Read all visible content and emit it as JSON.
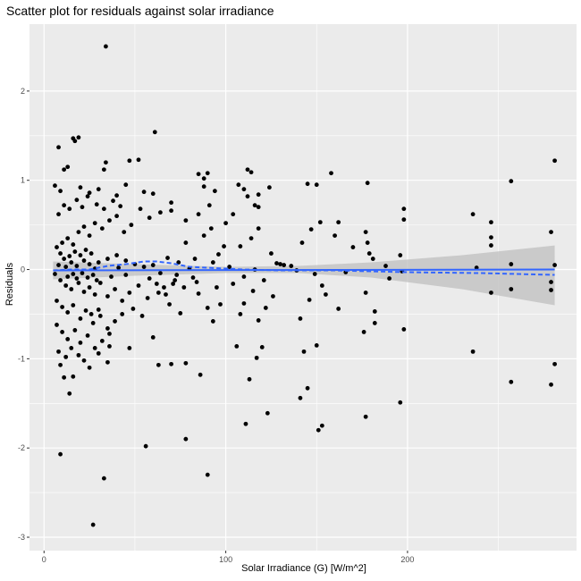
{
  "chart_data": {
    "type": "scatter",
    "title": "Scatter plot for residuals against solar irradiance",
    "xlabel": "Solar Irradiance (G) [W/m^2]",
    "ylabel": "Residuals",
    "xlim": [
      -8,
      293
    ],
    "ylim": [
      -3.15,
      2.75
    ],
    "xticks": [
      0,
      100,
      200
    ],
    "yticks": [
      -3,
      -2,
      -1,
      0,
      1,
      2
    ],
    "grid": true,
    "background": "#EBEBEB",
    "point_color": "#000000",
    "fit_color": "#3366FF",
    "band_color": "#BFBFBF",
    "series": [
      {
        "type": "points",
        "points": [
          [
            34,
            2.5
          ],
          [
            61,
            1.54
          ],
          [
            16,
            1.47
          ],
          [
            17,
            1.44
          ],
          [
            19,
            1.48
          ],
          [
            8,
            1.37
          ],
          [
            34,
            1.2
          ],
          [
            33,
            1.12
          ],
          [
            52,
            1.23
          ],
          [
            47,
            1.22
          ],
          [
            13,
            1.15
          ],
          [
            11,
            1.12
          ],
          [
            6,
            0.94
          ],
          [
            9,
            0.88
          ],
          [
            20,
            0.92
          ],
          [
            25,
            0.86
          ],
          [
            30,
            0.9
          ],
          [
            40,
            0.83
          ],
          [
            45,
            0.95
          ],
          [
            55,
            0.87
          ],
          [
            60,
            0.85
          ],
          [
            70,
            0.75
          ],
          [
            85,
            1.07
          ],
          [
            88,
            1.02
          ],
          [
            90,
            1.08
          ],
          [
            88,
            0.93
          ],
          [
            94,
            0.88
          ],
          [
            107,
            0.95
          ],
          [
            112,
            1.12
          ],
          [
            114,
            1.09
          ],
          [
            110,
            0.9
          ],
          [
            118,
            0.84
          ],
          [
            124,
            0.92
          ],
          [
            145,
            0.96
          ],
          [
            150,
            0.95
          ],
          [
            158,
            1.08
          ],
          [
            178,
            0.97
          ],
          [
            198,
            0.68
          ],
          [
            198,
            0.56
          ],
          [
            257,
            0.99
          ],
          [
            281,
            1.22
          ],
          [
            236,
            0.62
          ],
          [
            246,
            0.53
          ],
          [
            246,
            0.36
          ],
          [
            246,
            0.27
          ],
          [
            238,
            0.02
          ],
          [
            246,
            -0.26
          ],
          [
            257,
            -0.22
          ],
          [
            257,
            0.06
          ],
          [
            279,
            0.42
          ],
          [
            281,
            0.05
          ],
          [
            279,
            -0.14
          ],
          [
            279,
            -0.23
          ],
          [
            281,
            -1.06
          ],
          [
            279,
            -1.29
          ],
          [
            257,
            -1.26
          ],
          [
            236,
            -0.92
          ],
          [
            198,
            -0.67
          ],
          [
            196,
            -1.49
          ],
          [
            177,
            -1.65
          ],
          [
            176,
            -0.7
          ],
          [
            182,
            -0.47
          ],
          [
            182,
            -0.6
          ],
          [
            178,
            0.3
          ],
          [
            177,
            0.42
          ],
          [
            177,
            -0.26
          ],
          [
            162,
            -0.44
          ],
          [
            155,
            -0.28
          ],
          [
            153,
            -0.18
          ],
          [
            146,
            -0.34
          ],
          [
            141,
            -0.55
          ],
          [
            143,
            -0.92
          ],
          [
            141,
            -1.44
          ],
          [
            145,
            -1.33
          ],
          [
            150,
            -0.85
          ],
          [
            151,
            -1.8
          ],
          [
            153,
            -1.75
          ],
          [
            123,
            -1.61
          ],
          [
            111,
            -1.73
          ],
          [
            113,
            -1.23
          ],
          [
            117,
            -0.99
          ],
          [
            120,
            -0.87
          ],
          [
            118,
            -0.57
          ],
          [
            122,
            -0.43
          ],
          [
            106,
            -0.86
          ],
          [
            108,
            -0.5
          ],
          [
            110,
            -0.38
          ],
          [
            93,
            -0.58
          ],
          [
            90,
            -2.3
          ],
          [
            86,
            -1.18
          ],
          [
            78,
            -1.05
          ],
          [
            78,
            -1.9
          ],
          [
            70,
            -1.06
          ],
          [
            63,
            -1.07
          ],
          [
            56,
            -1.98
          ],
          [
            33,
            -2.34
          ],
          [
            27,
            -2.86
          ],
          [
            9,
            -2.07
          ],
          [
            14,
            -1.39
          ],
          [
            11,
            -1.21
          ],
          [
            16,
            -1.2
          ],
          [
            9,
            -1.07
          ],
          [
            22,
            -1.02
          ],
          [
            25,
            -1.1
          ],
          [
            30,
            -0.94
          ],
          [
            35,
            -1.04
          ],
          [
            36,
            -0.86
          ],
          [
            36,
            -0.72
          ],
          [
            47,
            -0.88
          ],
          [
            54,
            -0.52
          ],
          [
            60,
            -0.76
          ],
          [
            69,
            -0.39
          ],
          [
            75,
            -0.49
          ],
          [
            85,
            -0.27
          ],
          [
            90,
            -0.43
          ],
          [
            97,
            -0.39
          ],
          [
            63,
            -0.26
          ],
          [
            66,
            -0.2
          ],
          [
            71,
            -0.16
          ],
          [
            78,
            0.3
          ],
          [
            83,
            0.12
          ],
          [
            96,
            0.17
          ],
          [
            99,
            0.26
          ],
          [
            108,
            0.26
          ],
          [
            114,
            0.35
          ],
          [
            118,
            0.46
          ],
          [
            125,
            0.18
          ],
          [
            128,
            0.07
          ],
          [
            132,
            0.05
          ],
          [
            136,
            0.04
          ],
          [
            142,
            0.3
          ],
          [
            147,
            0.45
          ],
          [
            152,
            0.53
          ],
          [
            160,
            0.38
          ],
          [
            162,
            0.53
          ],
          [
            170,
            0.25
          ],
          [
            179,
            0.18
          ],
          [
            181,
            0.12
          ],
          [
            188,
            0.04
          ],
          [
            196,
            0.16
          ],
          [
            197,
            -0.02
          ],
          [
            190,
            -0.1
          ],
          [
            166,
            -0.03
          ],
          [
            149,
            -0.05
          ],
          [
            139,
            -0.01
          ],
          [
            130,
            0.06
          ],
          [
            121,
            -0.12
          ],
          [
            116,
            0.0
          ],
          [
            110,
            -0.08
          ],
          [
            102,
            0.03
          ],
          [
            93,
            0.08
          ],
          [
            80,
            0.01
          ],
          [
            74,
            0.08
          ],
          [
            68,
            0.13
          ],
          [
            60,
            0.05
          ],
          [
            55,
            0.03
          ],
          [
            50,
            0.06
          ],
          [
            45,
            0.1
          ],
          [
            40,
            0.16
          ],
          [
            35,
            0.12
          ],
          [
            30,
            0.08
          ],
          [
            28,
            0.01
          ],
          [
            25,
            0.06
          ],
          [
            22,
            0.1
          ],
          [
            18,
            0.04
          ],
          [
            15,
            0.08
          ],
          [
            12,
            0.03
          ],
          [
            8,
            0.05
          ],
          [
            6,
            -0.05
          ],
          [
            9,
            -0.12
          ],
          [
            12,
            -0.18
          ],
          [
            15,
            -0.22
          ],
          [
            19,
            -0.15
          ],
          [
            22,
            -0.25
          ],
          [
            25,
            -0.2
          ],
          [
            28,
            -0.28
          ],
          [
            31,
            -0.15
          ],
          [
            35,
            -0.3
          ],
          [
            39,
            -0.22
          ],
          [
            43,
            -0.35
          ],
          [
            47,
            -0.26
          ],
          [
            52,
            -0.18
          ],
          [
            57,
            -0.32
          ],
          [
            62,
            -0.16
          ],
          [
            67,
            -0.28
          ],
          [
            72,
            -0.12
          ],
          [
            77,
            -0.2
          ],
          [
            82,
            -0.09
          ],
          [
            7,
            0.25
          ],
          [
            10,
            0.3
          ],
          [
            13,
            0.35
          ],
          [
            16,
            0.28
          ],
          [
            19,
            0.42
          ],
          [
            22,
            0.48
          ],
          [
            25,
            0.38
          ],
          [
            28,
            0.52
          ],
          [
            32,
            0.46
          ],
          [
            36,
            0.55
          ],
          [
            40,
            0.6
          ],
          [
            44,
            0.42
          ],
          [
            48,
            0.5
          ],
          [
            53,
            0.68
          ],
          [
            58,
            0.58
          ],
          [
            64,
            0.64
          ],
          [
            8,
            0.62
          ],
          [
            11,
            0.72
          ],
          [
            14,
            0.68
          ],
          [
            18,
            0.78
          ],
          [
            21,
            0.7
          ],
          [
            24,
            0.82
          ],
          [
            29,
            0.73
          ],
          [
            33,
            0.68
          ],
          [
            38,
            0.77
          ],
          [
            42,
            0.71
          ],
          [
            7,
            -0.35
          ],
          [
            10,
            -0.42
          ],
          [
            13,
            -0.48
          ],
          [
            16,
            -0.4
          ],
          [
            20,
            -0.55
          ],
          [
            23,
            -0.46
          ],
          [
            27,
            -0.6
          ],
          [
            31,
            -0.52
          ],
          [
            35,
            -0.66
          ],
          [
            39,
            -0.58
          ],
          [
            43,
            -0.5
          ],
          [
            49,
            -0.44
          ],
          [
            7,
            -0.62
          ],
          [
            10,
            -0.7
          ],
          [
            13,
            -0.78
          ],
          [
            17,
            -0.68
          ],
          [
            20,
            -0.82
          ],
          [
            24,
            -0.74
          ],
          [
            28,
            -0.88
          ],
          [
            32,
            -0.8
          ],
          [
            8,
            -0.92
          ],
          [
            12,
            -0.98
          ],
          [
            15,
            -0.88
          ],
          [
            19,
            -0.96
          ],
          [
            26,
            -0.5
          ],
          [
            30,
            -0.45
          ],
          [
            14,
            0.15
          ],
          [
            17,
            0.2
          ],
          [
            20,
            0.16
          ],
          [
            23,
            0.22
          ],
          [
            26,
            0.18
          ],
          [
            9,
            0.18
          ],
          [
            11,
            0.12
          ],
          [
            13,
            -0.08
          ],
          [
            16,
            -0.05
          ],
          [
            18,
            -0.1
          ],
          [
            21,
            -0.04
          ],
          [
            24,
            -0.09
          ],
          [
            27,
            -0.06
          ],
          [
            29,
            -0.12
          ],
          [
            37,
            -0.08
          ],
          [
            41,
            0.02
          ],
          [
            45,
            -0.06
          ],
          [
            58,
            -0.1
          ],
          [
            64,
            -0.04
          ],
          [
            73,
            -0.06
          ],
          [
            84,
            -0.14
          ],
          [
            95,
            -0.2
          ],
          [
            104,
            -0.16
          ],
          [
            115,
            -0.24
          ],
          [
            126,
            -0.3
          ],
          [
            88,
            0.38
          ],
          [
            92,
            0.46
          ],
          [
            100,
            0.52
          ],
          [
            85,
            0.62
          ],
          [
            104,
            0.62
          ],
          [
            118,
            0.7
          ],
          [
            70,
            0.66
          ],
          [
            78,
            0.55
          ],
          [
            91,
            0.72
          ],
          [
            112,
            0.82
          ],
          [
            116,
            0.72
          ]
        ]
      },
      {
        "type": "linear_fit",
        "line": [
          [
            5,
            -0.01
          ],
          [
            281,
            0.0
          ]
        ],
        "band_upper": [
          [
            5,
            0.09
          ],
          [
            50,
            0.06
          ],
          [
            100,
            0.03
          ],
          [
            140,
            0.04
          ],
          [
            180,
            0.08
          ],
          [
            230,
            0.16
          ],
          [
            281,
            0.27
          ]
        ],
        "band_lower": [
          [
            5,
            -0.11
          ],
          [
            50,
            -0.07
          ],
          [
            100,
            -0.04
          ],
          [
            140,
            -0.04
          ],
          [
            180,
            -0.09
          ],
          [
            230,
            -0.22
          ],
          [
            281,
            -0.4
          ]
        ]
      },
      {
        "type": "loess_fit",
        "dashed": true,
        "line": [
          [
            5,
            -0.01
          ],
          [
            15,
            0.0
          ],
          [
            25,
            0.0
          ],
          [
            35,
            0.04
          ],
          [
            45,
            0.06
          ],
          [
            55,
            0.09
          ],
          [
            62,
            0.09
          ],
          [
            70,
            0.07
          ],
          [
            80,
            0.03
          ],
          [
            90,
            0.02
          ],
          [
            100,
            0.01
          ],
          [
            110,
            0.0
          ],
          [
            130,
            -0.01
          ],
          [
            160,
            -0.01
          ],
          [
            200,
            -0.03
          ],
          [
            240,
            -0.04
          ],
          [
            281,
            -0.06
          ]
        ]
      }
    ]
  }
}
